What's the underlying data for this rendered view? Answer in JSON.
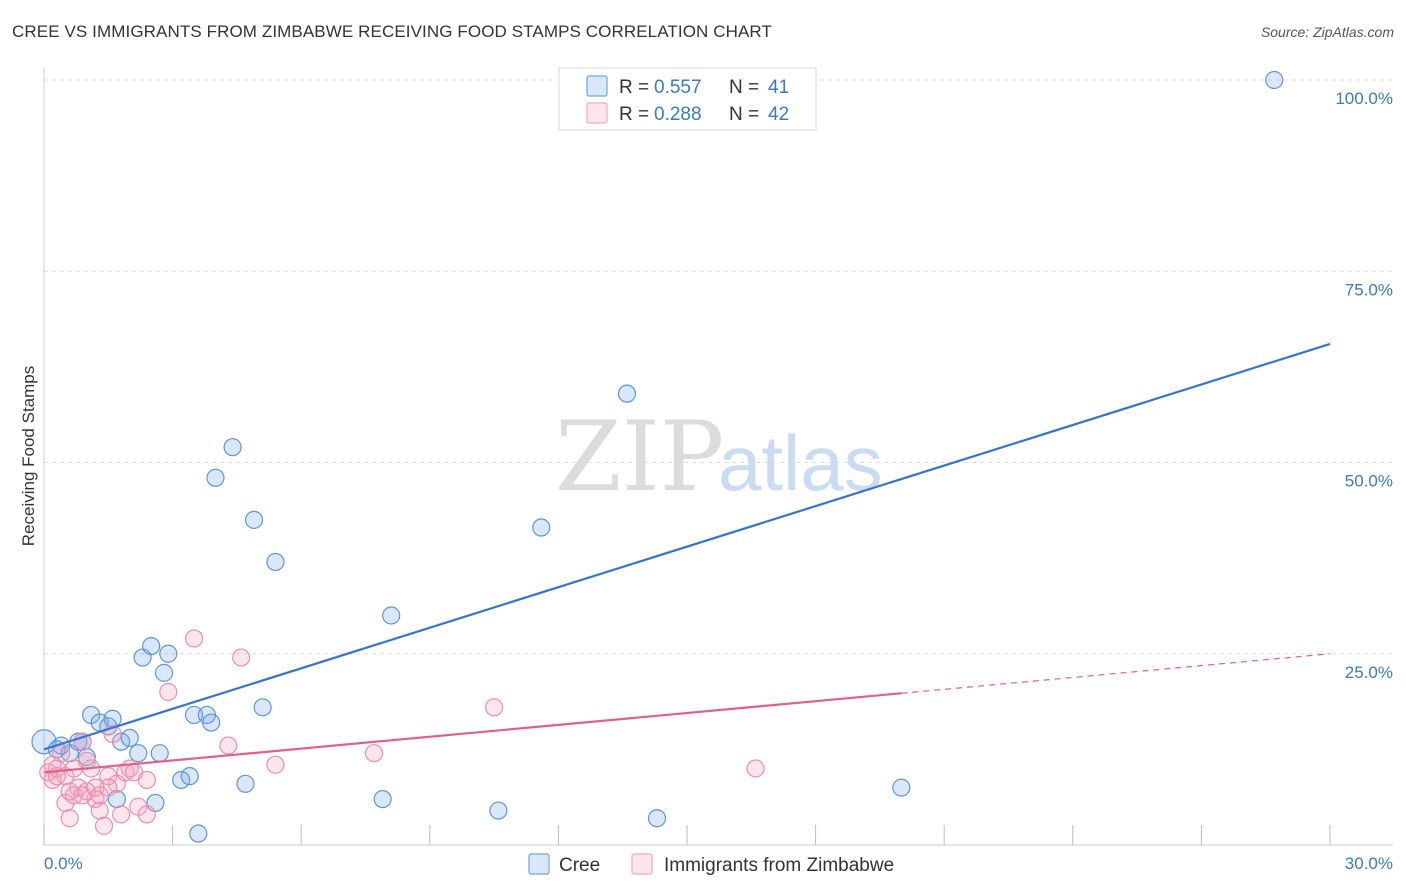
{
  "header": {
    "title": "CREE VS IMMIGRANTS FROM ZIMBABWE RECEIVING FOOD STAMPS CORRELATION CHART",
    "source": "Source: ZipAtlas.com"
  },
  "watermark": {
    "zip": "ZIP",
    "atlas": "atlas"
  },
  "legend_top": [
    {
      "r_label": "R = ",
      "r_value": "0.557",
      "n_label": "N = ",
      "n_value": "41",
      "color": "#6fa8dc"
    },
    {
      "r_label": "R = ",
      "r_value": "0.288",
      "n_label": "N = ",
      "n_value": "42",
      "color": "#f4a7bf"
    }
  ],
  "legend_bottom": [
    {
      "label": "Cree",
      "color": "#6fa8dc"
    },
    {
      "label": "Immigrants from Zimbabwe",
      "color": "#f4a7bf"
    }
  ],
  "colors": {
    "blue": "#3574d0",
    "pink": "#e0608e",
    "blue_fill": "rgba(120,170,230,0.28)",
    "pink_fill": "rgba(244,160,190,0.28)"
  },
  "chart_data": {
    "type": "scatter",
    "title": "CREE VS IMMIGRANTS FROM ZIMBABWE RECEIVING FOOD STAMPS CORRELATION CHART",
    "xlabel": "",
    "ylabel": "Receiving Food Stamps",
    "xlim": [
      0,
      30
    ],
    "ylim": [
      0,
      100
    ],
    "x_tick_labels": [
      "0.0%",
      "30.0%"
    ],
    "y_ticks": [
      25,
      50,
      75,
      100
    ],
    "y_tick_labels": [
      "25.0%",
      "50.0%",
      "75.0%",
      "100.0%"
    ],
    "grid": true,
    "series": [
      {
        "name": "Cree",
        "r": 0.557,
        "n": 41,
        "trend": {
          "x": [
            0,
            30
          ],
          "y": [
            12.5,
            65.5
          ],
          "dashed_from": null
        },
        "points": [
          [
            0.0,
            13.5
          ],
          [
            0.3,
            12.5
          ],
          [
            0.6,
            12.0
          ],
          [
            0.8,
            13.5
          ],
          [
            1.0,
            11.5
          ],
          [
            1.1,
            17.0
          ],
          [
            1.3,
            16.0
          ],
          [
            1.5,
            15.5
          ],
          [
            1.6,
            16.5
          ],
          [
            1.8,
            13.5
          ],
          [
            2.0,
            14.0
          ],
          [
            2.2,
            12.0
          ],
          [
            2.3,
            24.5
          ],
          [
            2.5,
            26.0
          ],
          [
            2.7,
            12.0
          ],
          [
            2.8,
            22.5
          ],
          [
            2.9,
            25.0
          ],
          [
            3.2,
            8.5
          ],
          [
            3.4,
            9.0
          ],
          [
            3.5,
            17.0
          ],
          [
            3.6,
            1.5
          ],
          [
            3.8,
            17.0
          ],
          [
            3.9,
            16.0
          ],
          [
            4.0,
            48.0
          ],
          [
            4.4,
            52.0
          ],
          [
            4.7,
            8.0
          ],
          [
            4.9,
            42.5
          ],
          [
            5.1,
            18.0
          ],
          [
            5.4,
            37.0
          ],
          [
            7.9,
            6.0
          ],
          [
            8.1,
            30.0
          ],
          [
            10.6,
            4.5
          ],
          [
            11.6,
            41.5
          ],
          [
            13.6,
            59.0
          ],
          [
            14.3,
            3.5
          ],
          [
            20.0,
            7.5
          ],
          [
            28.7,
            100.0
          ],
          [
            0.4,
            13.0
          ],
          [
            1.7,
            6.0
          ],
          [
            2.6,
            5.5
          ],
          [
            0.9,
            13.5
          ]
        ]
      },
      {
        "name": "Immigrants from Zimbabwe",
        "r": 0.288,
        "n": 42,
        "trend": {
          "x": [
            0,
            30
          ],
          "y": [
            9.5,
            25.0
          ],
          "dashed_from": 20.0
        },
        "points": [
          [
            0.1,
            9.5
          ],
          [
            0.2,
            8.5
          ],
          [
            0.3,
            10.0
          ],
          [
            0.4,
            12.0
          ],
          [
            0.5,
            9.0
          ],
          [
            0.5,
            5.5
          ],
          [
            0.6,
            3.5
          ],
          [
            0.7,
            6.5
          ],
          [
            0.8,
            7.5
          ],
          [
            0.9,
            13.5
          ],
          [
            1.0,
            7.0
          ],
          [
            1.1,
            10.0
          ],
          [
            1.2,
            6.0
          ],
          [
            1.3,
            4.5
          ],
          [
            1.4,
            2.5
          ],
          [
            1.5,
            9.0
          ],
          [
            1.6,
            14.5
          ],
          [
            1.7,
            8.0
          ],
          [
            1.8,
            4.0
          ],
          [
            1.9,
            9.5
          ],
          [
            2.0,
            10.0
          ],
          [
            2.2,
            5.0
          ],
          [
            2.4,
            8.5
          ],
          [
            2.4,
            4.0
          ],
          [
            2.9,
            20.0
          ],
          [
            3.5,
            27.0
          ],
          [
            4.3,
            13.0
          ],
          [
            4.6,
            24.5
          ],
          [
            5.4,
            10.5
          ],
          [
            7.7,
            12.0
          ],
          [
            10.5,
            18.0
          ],
          [
            16.6,
            10.0
          ],
          [
            0.2,
            10.5
          ],
          [
            0.9,
            6.5
          ],
          [
            1.3,
            6.5
          ],
          [
            1.0,
            11.0
          ],
          [
            0.3,
            9.0
          ],
          [
            1.5,
            7.5
          ],
          [
            0.6,
            7.0
          ],
          [
            1.2,
            7.5
          ],
          [
            2.1,
            9.5
          ],
          [
            0.7,
            10.0
          ]
        ]
      }
    ]
  }
}
